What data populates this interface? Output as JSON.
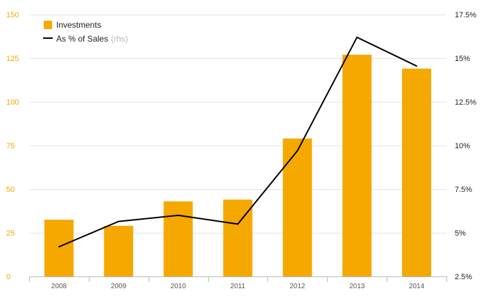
{
  "chart_data": {
    "type": "bar",
    "categories": [
      "2008",
      "2009",
      "2010",
      "2011",
      "2012",
      "2013",
      "2014"
    ],
    "series": [
      {
        "name": "Investments",
        "type": "bar",
        "axis": "left",
        "color": "#f5a800",
        "values": [
          32.5,
          29,
          43,
          44,
          79,
          127,
          119
        ]
      },
      {
        "name": "As % of Sales",
        "type": "line",
        "axis": "right",
        "color": "#000000",
        "values": [
          4.2,
          5.65,
          6.0,
          5.5,
          9.7,
          16.2,
          14.55
        ]
      }
    ],
    "legend": {
      "items": [
        {
          "label": "Investments",
          "note": "",
          "marker": "square"
        },
        {
          "label": "As % of Sales",
          "note": "(rhs)",
          "marker": "line"
        }
      ],
      "placement": "top-left"
    },
    "y_left": {
      "ylim": [
        0,
        150
      ],
      "ticks": [
        0,
        25,
        50,
        75,
        100,
        125,
        150
      ],
      "tick_labels": [
        "0",
        "25",
        "50",
        "75",
        "100",
        "125",
        "150"
      ],
      "color": "#f5a800"
    },
    "y_right": {
      "ylim": [
        2.5,
        17.5
      ],
      "ticks": [
        2.5,
        5,
        7.5,
        10,
        12.5,
        15,
        17.5
      ],
      "tick_labels": [
        "2.5%",
        "5%",
        "7.5%",
        "10%",
        "12.5%",
        "15%",
        "17.5%"
      ]
    },
    "grid": true,
    "title": "",
    "xlabel": "",
    "ylabel": ""
  }
}
